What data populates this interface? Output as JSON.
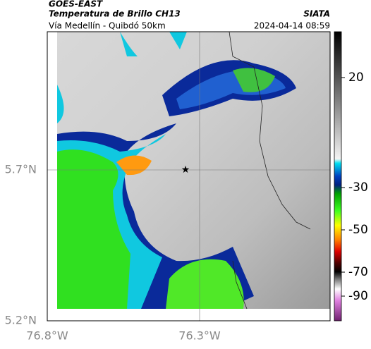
{
  "header": {
    "satellite": "GOES-EAST",
    "product": "Temperatura de Brillo CH13",
    "region": "Vía Medellín - Quibdó 50km",
    "source": "SIATA",
    "timestamp": "2024-04-14 08:59"
  },
  "axes": {
    "y_labels": [
      "5.7°N",
      "5.2°N"
    ],
    "x_labels": [
      "76.8°W",
      "76.3°W"
    ]
  },
  "colorbar": {
    "ticks": [
      20,
      -30,
      -50,
      -70,
      -90
    ]
  }
}
